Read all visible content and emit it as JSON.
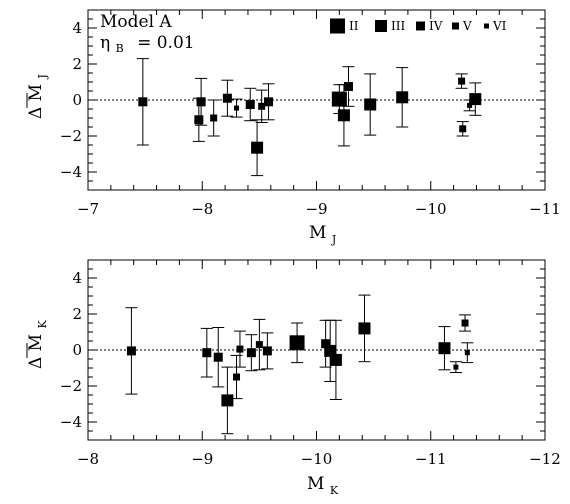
{
  "chart_data": [
    {
      "type": "scatter",
      "panel": "top",
      "annotation": {
        "model": "Model A",
        "eta_symbol": "η",
        "eta_sub": "B",
        "eta_value": "= 0.01"
      },
      "xlabel": {
        "main": "M",
        "sub": "J"
      },
      "ylabel": {
        "prefix": "Δ",
        "main": "M",
        "sub": "J",
        "overbar": true
      },
      "xlim": [
        -7,
        -11
      ],
      "ylim": [
        -5,
        5
      ],
      "x_ticks": [
        -7,
        -8,
        -9,
        -10,
        -11
      ],
      "x_tick_labels": [
        "−7",
        "−8",
        "−9",
        "−10",
        "−11"
      ],
      "y_ticks": [
        -4,
        -2,
        0,
        2,
        4
      ],
      "y_tick_labels": [
        "−4",
        "−2",
        "0",
        "2",
        "4"
      ],
      "reference_line": {
        "y": 0,
        "style": "dotted"
      },
      "legend": [
        {
          "label": "II",
          "size_class": 2
        },
        {
          "label": "III",
          "size_class": 3
        },
        {
          "label": "IV",
          "size_class": 4
        },
        {
          "label": "V",
          "size_class": 5
        },
        {
          "label": "VI",
          "size_class": 6
        }
      ],
      "points": [
        {
          "x": -7.48,
          "y": -0.1,
          "err": 2.4,
          "size_class": 4
        },
        {
          "x": -7.97,
          "y": -1.1,
          "err": 1.2,
          "size_class": 4
        },
        {
          "x": -7.99,
          "y": -0.1,
          "err": 1.3,
          "size_class": 4
        },
        {
          "x": -8.1,
          "y": -1.0,
          "err": 1.0,
          "size_class": 5
        },
        {
          "x": -8.22,
          "y": 0.1,
          "err": 1.0,
          "size_class": 4
        },
        {
          "x": -8.3,
          "y": -0.45,
          "err": 0.5,
          "size_class": 6
        },
        {
          "x": -8.42,
          "y": -0.25,
          "err": 0.9,
          "size_class": 4
        },
        {
          "x": -8.48,
          "y": -2.65,
          "err": 1.55,
          "size_class": 3
        },
        {
          "x": -8.52,
          "y": -0.35,
          "err": 0.9,
          "size_class": 5
        },
        {
          "x": -8.58,
          "y": -0.1,
          "err": 1.0,
          "size_class": 4
        },
        {
          "x": -9.2,
          "y": 0.05,
          "err": 0.8,
          "size_class": 2
        },
        {
          "x": -9.24,
          "y": -0.85,
          "err": 1.7,
          "size_class": 3
        },
        {
          "x": -9.28,
          "y": 0.75,
          "err": 1.1,
          "size_class": 4
        },
        {
          "x": -9.47,
          "y": -0.25,
          "err": 1.7,
          "size_class": 3
        },
        {
          "x": -9.75,
          "y": 0.15,
          "err": 1.65,
          "size_class": 3
        },
        {
          "x": -10.27,
          "y": 1.05,
          "err": 0.4,
          "size_class": 5
        },
        {
          "x": -10.28,
          "y": -1.6,
          "err": 0.4,
          "size_class": 5
        },
        {
          "x": -10.34,
          "y": -0.3,
          "err": 0.3,
          "size_class": 6
        },
        {
          "x": -10.39,
          "y": 0.05,
          "err": 0.9,
          "size_class": 3
        }
      ]
    },
    {
      "type": "scatter",
      "panel": "bottom",
      "xlabel": {
        "main": "M",
        "sub": "K"
      },
      "ylabel": {
        "prefix": "Δ",
        "main": "M",
        "sub": "K",
        "overbar": true
      },
      "xlim": [
        -8,
        -12
      ],
      "ylim": [
        -5,
        5
      ],
      "x_ticks": [
        -8,
        -9,
        -10,
        -11,
        -12
      ],
      "x_tick_labels": [
        "−8",
        "−9",
        "−10",
        "−11",
        "−12"
      ],
      "y_ticks": [
        -4,
        -2,
        0,
        2,
        4
      ],
      "y_tick_labels": [
        "−4",
        "−2",
        "0",
        "2",
        "4"
      ],
      "reference_line": {
        "y": 0,
        "style": "dotted"
      },
      "points": [
        {
          "x": -8.38,
          "y": -0.05,
          "err": 2.4,
          "size_class": 4
        },
        {
          "x": -9.04,
          "y": -0.15,
          "err": 1.35,
          "size_class": 4
        },
        {
          "x": -9.14,
          "y": -0.4,
          "err": 1.65,
          "size_class": 4
        },
        {
          "x": -9.22,
          "y": -2.8,
          "err": 1.85,
          "size_class": 3
        },
        {
          "x": -9.3,
          "y": -1.5,
          "err": 1.2,
          "size_class": 5
        },
        {
          "x": -9.33,
          "y": 0.05,
          "err": 1.0,
          "size_class": 5
        },
        {
          "x": -9.43,
          "y": -0.15,
          "err": 1.0,
          "size_class": 4
        },
        {
          "x": -9.5,
          "y": 0.3,
          "err": 1.4,
          "size_class": 5
        },
        {
          "x": -9.57,
          "y": -0.05,
          "err": 1.0,
          "size_class": 4
        },
        {
          "x": -9.83,
          "y": 0.4,
          "err": 1.1,
          "size_class": 2
        },
        {
          "x": -10.08,
          "y": 0.35,
          "err": 1.3,
          "size_class": 4
        },
        {
          "x": -10.12,
          "y": -0.05,
          "err": 1.7,
          "size_class": 3
        },
        {
          "x": -10.17,
          "y": -0.55,
          "err": 2.2,
          "size_class": 3
        },
        {
          "x": -10.42,
          "y": 1.2,
          "err": 1.85,
          "size_class": 3
        },
        {
          "x": -11.12,
          "y": 0.1,
          "err": 1.2,
          "size_class": 3
        },
        {
          "x": -11.22,
          "y": -0.95,
          "err": 0.3,
          "size_class": 6
        },
        {
          "x": -11.3,
          "y": 1.5,
          "err": 0.45,
          "size_class": 5
        },
        {
          "x": -11.32,
          "y": -0.15,
          "err": 0.55,
          "size_class": 6
        }
      ]
    }
  ]
}
